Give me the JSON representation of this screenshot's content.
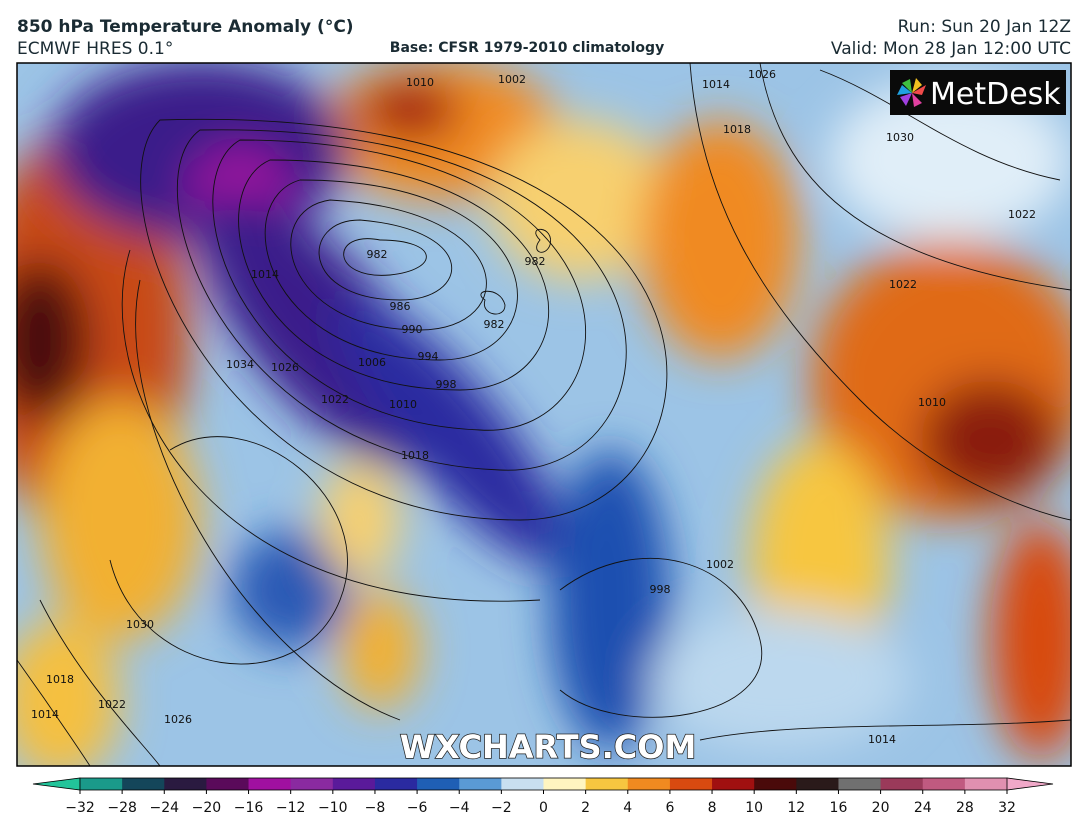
{
  "header": {
    "title": "850 hPa Temperature Anomaly (°C)",
    "model": "ECMWF HRES 0.1°",
    "base": "Base: CFSR 1979-2010 climatology",
    "run": "Run: Sun 20 Jan 12Z",
    "valid": "Valid: Mon 28 Jan 12:00 UTC"
  },
  "map": {
    "logo": "MetDesk",
    "watermark": "WXCHARTS.COM",
    "isobar_labels": [
      1010,
      1002,
      1014,
      1026,
      1018,
      1030,
      1022,
      1022,
      982,
      982,
      982,
      986,
      990,
      994,
      998,
      1006,
      1010,
      1018,
      1022,
      1026,
      1034,
      1014,
      1010,
      1030,
      1018,
      1022,
      1026,
      1014,
      1014,
      998,
      1002
    ]
  },
  "colorbar": {
    "ticks": [
      {
        "value": -32,
        "label": "−32"
      },
      {
        "value": -28,
        "label": "−28"
      },
      {
        "value": -24,
        "label": "−24"
      },
      {
        "value": -20,
        "label": "−20"
      },
      {
        "value": -16,
        "label": "−16"
      },
      {
        "value": -12,
        "label": "−12"
      },
      {
        "value": -10,
        "label": "−10"
      },
      {
        "value": -8,
        "label": "−8"
      },
      {
        "value": -6,
        "label": "−6"
      },
      {
        "value": -4,
        "label": "−4"
      },
      {
        "value": -2,
        "label": "−2"
      },
      0,
      2,
      4,
      6,
      8,
      10,
      12,
      16,
      20,
      24,
      28,
      32
    ],
    "colors": [
      "#1a9a8a",
      "#14465a",
      "#2a1a40",
      "#5a0a5a",
      "#a010a0",
      "#8a2aa0",
      "#5a1a9a",
      "#2a2aa0",
      "#1f5fb5",
      "#5a9ad5",
      "#c8dff0",
      "#fff5c0",
      "#f7c640",
      "#f08a20",
      "#d84a10",
      "#a01010",
      "#4a0a0a",
      "#2a1a1a",
      "#707070",
      "#9a3a5a",
      "#c05a80",
      "#e090b0"
    ],
    "under_color": "#22c49a",
    "over_color": "#f0a8c8"
  }
}
